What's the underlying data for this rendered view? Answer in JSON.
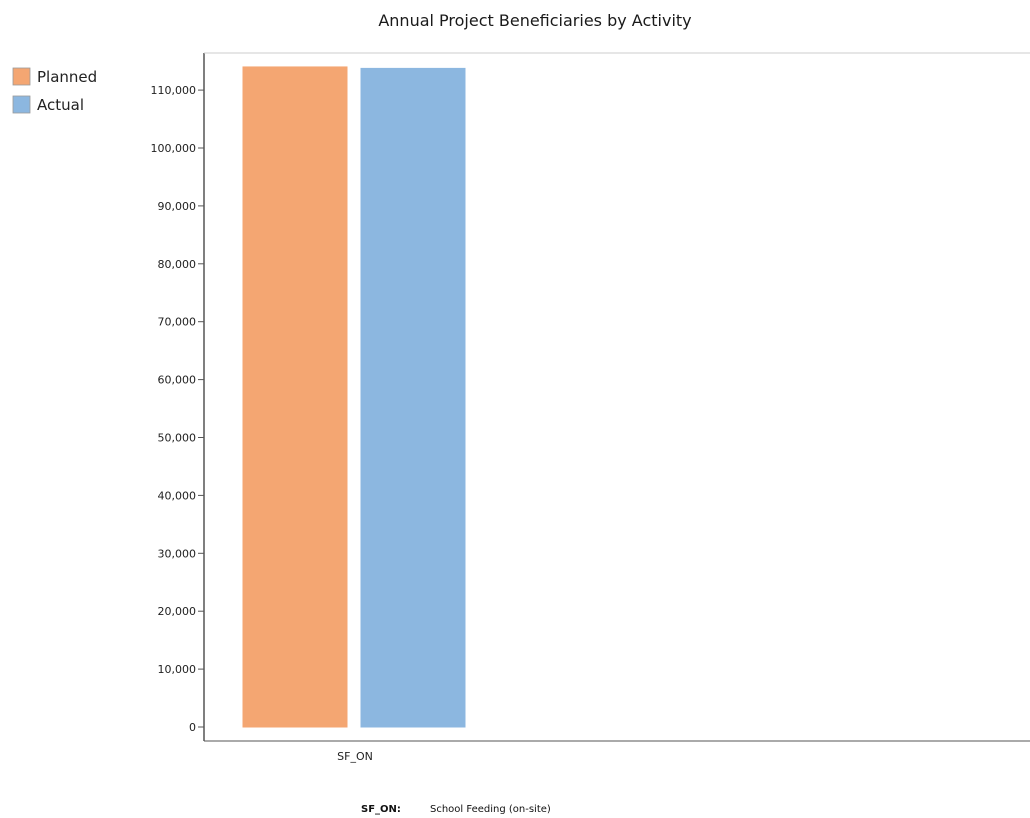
{
  "chart_data": {
    "type": "bar",
    "title": "Annual Project Beneficiaries by Activity",
    "xlabel": "",
    "ylabel": "",
    "categories": [
      "SF_ON"
    ],
    "series": [
      {
        "name": "Planned",
        "color": "#f4a672",
        "values": [
          114000
        ]
      },
      {
        "name": "Actual",
        "color": "#8cb7e0",
        "values": [
          113750
        ]
      }
    ],
    "ylim": [
      0,
      115000
    ],
    "yticks": [
      0,
      10000,
      20000,
      30000,
      40000,
      50000,
      60000,
      70000,
      80000,
      90000,
      100000,
      110000
    ],
    "ytick_labels": [
      "0",
      "10,000",
      "20,000",
      "30,000",
      "40,000",
      "50,000",
      "60,000",
      "70,000",
      "80,000",
      "90,000",
      "100,000",
      "110,000"
    ],
    "grid": false,
    "legend": "top-left"
  },
  "footnote": {
    "code": "SF_ON:",
    "description": "School Feeding (on-site)"
  }
}
